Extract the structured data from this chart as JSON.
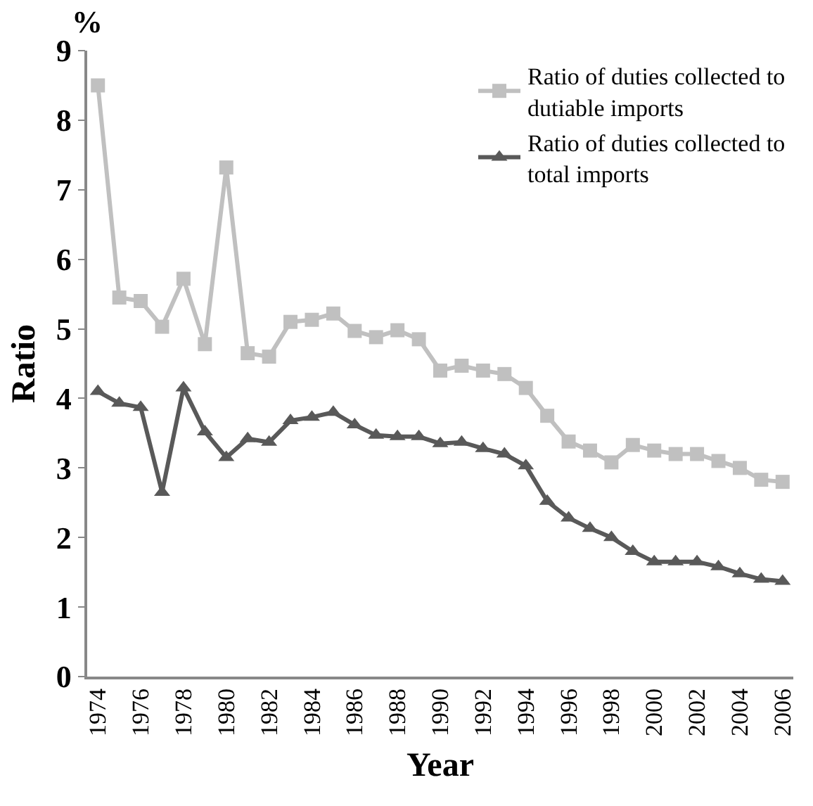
{
  "chart_data": {
    "type": "line",
    "xlabel": "Year",
    "ylabel": "Ratio",
    "annotations": [
      "%"
    ],
    "x": [
      1974,
      1975,
      1976,
      1977,
      1978,
      1979,
      1980,
      1981,
      1982,
      1983,
      1984,
      1985,
      1986,
      1987,
      1988,
      1989,
      1990,
      1991,
      1992,
      1993,
      1994,
      1995,
      1996,
      1997,
      1998,
      1999,
      2000,
      2001,
      2002,
      2003,
      2004,
      2005,
      2006
    ],
    "series": [
      {
        "name": "Ratio of duties collected to dutiable imports",
        "color": "#c0c0c0",
        "marker": "square",
        "values": [
          8.5,
          5.45,
          5.4,
          5.03,
          5.72,
          4.78,
          7.32,
          4.65,
          4.6,
          5.1,
          5.13,
          5.22,
          4.97,
          4.88,
          4.98,
          4.85,
          4.4,
          4.47,
          4.4,
          4.35,
          4.15,
          3.75,
          3.38,
          3.25,
          3.08,
          3.33,
          3.25,
          3.2,
          3.2,
          3.1,
          3.0,
          2.83,
          2.8
        ]
      },
      {
        "name": "Ratio of duties collected to total imports",
        "color": "#595959",
        "marker": "triangle",
        "values": [
          4.1,
          3.93,
          3.87,
          2.65,
          4.15,
          3.52,
          3.15,
          3.42,
          3.37,
          3.68,
          3.73,
          3.8,
          3.62,
          3.47,
          3.45,
          3.45,
          3.35,
          3.37,
          3.28,
          3.2,
          3.03,
          2.52,
          2.28,
          2.13,
          2.0,
          1.8,
          1.65,
          1.65,
          1.65,
          1.58,
          1.48,
          1.4,
          1.37
        ]
      }
    ],
    "xlim": [
      1973.5,
      2006.5
    ],
    "xticks": [
      1974,
      1976,
      1978,
      1980,
      1982,
      1984,
      1986,
      1988,
      1990,
      1992,
      1994,
      1996,
      1998,
      2000,
      2002,
      2004,
      2006
    ],
    "ylim": [
      0,
      9
    ],
    "yticks": [
      0,
      1,
      2,
      3,
      4,
      5,
      6,
      7,
      8,
      9
    ],
    "grid": false,
    "legend": "top right",
    "line_style": "solid"
  }
}
